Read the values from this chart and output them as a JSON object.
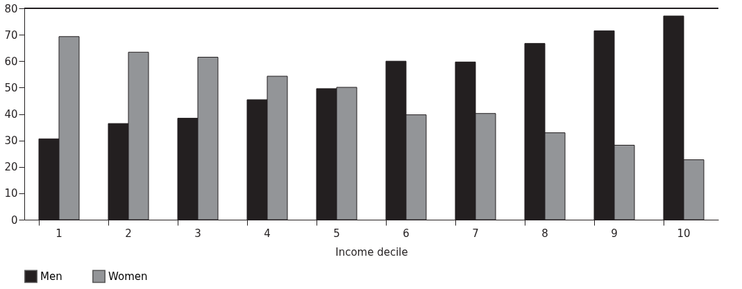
{
  "chart_data": {
    "type": "bar",
    "xlabel": "Income decile",
    "categories": [
      "1",
      "2",
      "3",
      "4",
      "5",
      "6",
      "7",
      "8",
      "9",
      "10"
    ],
    "series": [
      {
        "name": "Men",
        "color": "#231f20",
        "values": [
          30.6,
          36.4,
          38.4,
          45.4,
          49.6,
          60.0,
          59.7,
          66.7,
          71.5,
          77.1
        ]
      },
      {
        "name": "Women",
        "color": "#939598",
        "values": [
          69.3,
          63.4,
          61.5,
          54.3,
          50.1,
          39.7,
          40.2,
          32.9,
          28.2,
          22.7
        ]
      }
    ],
    "ylim": [
      0,
      80
    ],
    "yticks": [
      0,
      10,
      20,
      30,
      40,
      50,
      60,
      70,
      80
    ],
    "grid": false,
    "legend": "bottom"
  }
}
